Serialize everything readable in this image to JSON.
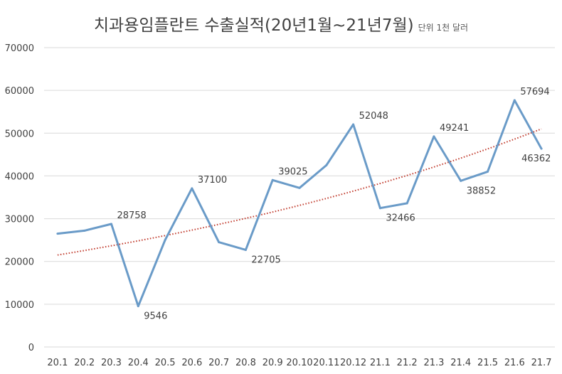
{
  "chart_data": {
    "type": "line",
    "title": "치과용임플란트 수출실적(20년1월~21년7월)",
    "unit_note": "단위 1천 달러",
    "categories": [
      "20.1",
      "20.2",
      "20.3",
      "20.4",
      "20.5",
      "20.6",
      "20.7",
      "20.8",
      "20.9",
      "20.10",
      "20.11",
      "20.12",
      "21.1",
      "21.2",
      "21.3",
      "21.4",
      "21.5",
      "21.6",
      "21.7"
    ],
    "series": [
      {
        "values": [
          26500,
          27200,
          28758,
          9546,
          25000,
          37100,
          24500,
          22705,
          39025,
          37200,
          42500,
          52048,
          32466,
          33600,
          49241,
          38852,
          41000,
          57694,
          46362
        ],
        "color": "#6a9bc8"
      }
    ],
    "data_labels": [
      {
        "index": 2,
        "text": "28758"
      },
      {
        "index": 3,
        "text": "9546"
      },
      {
        "index": 5,
        "text": "37100"
      },
      {
        "index": 7,
        "text": "22705"
      },
      {
        "index": 8,
        "text": "39025"
      },
      {
        "index": 11,
        "text": "52048"
      },
      {
        "index": 12,
        "text": "32466"
      },
      {
        "index": 14,
        "text": "49241"
      },
      {
        "index": 15,
        "text": "38852"
      },
      {
        "index": 17,
        "text": "57694"
      },
      {
        "index": 18,
        "text": "46362"
      }
    ],
    "trendline": {
      "type": "exponential",
      "style": "dotted",
      "color": "#c0392b",
      "start": 21500,
      "end": 51000
    },
    "yticks": [
      "0",
      "10000",
      "20000",
      "30000",
      "40000",
      "50000",
      "60000",
      "70000"
    ],
    "ylim": [
      0,
      70000
    ],
    "grid": true,
    "legend": "none"
  }
}
